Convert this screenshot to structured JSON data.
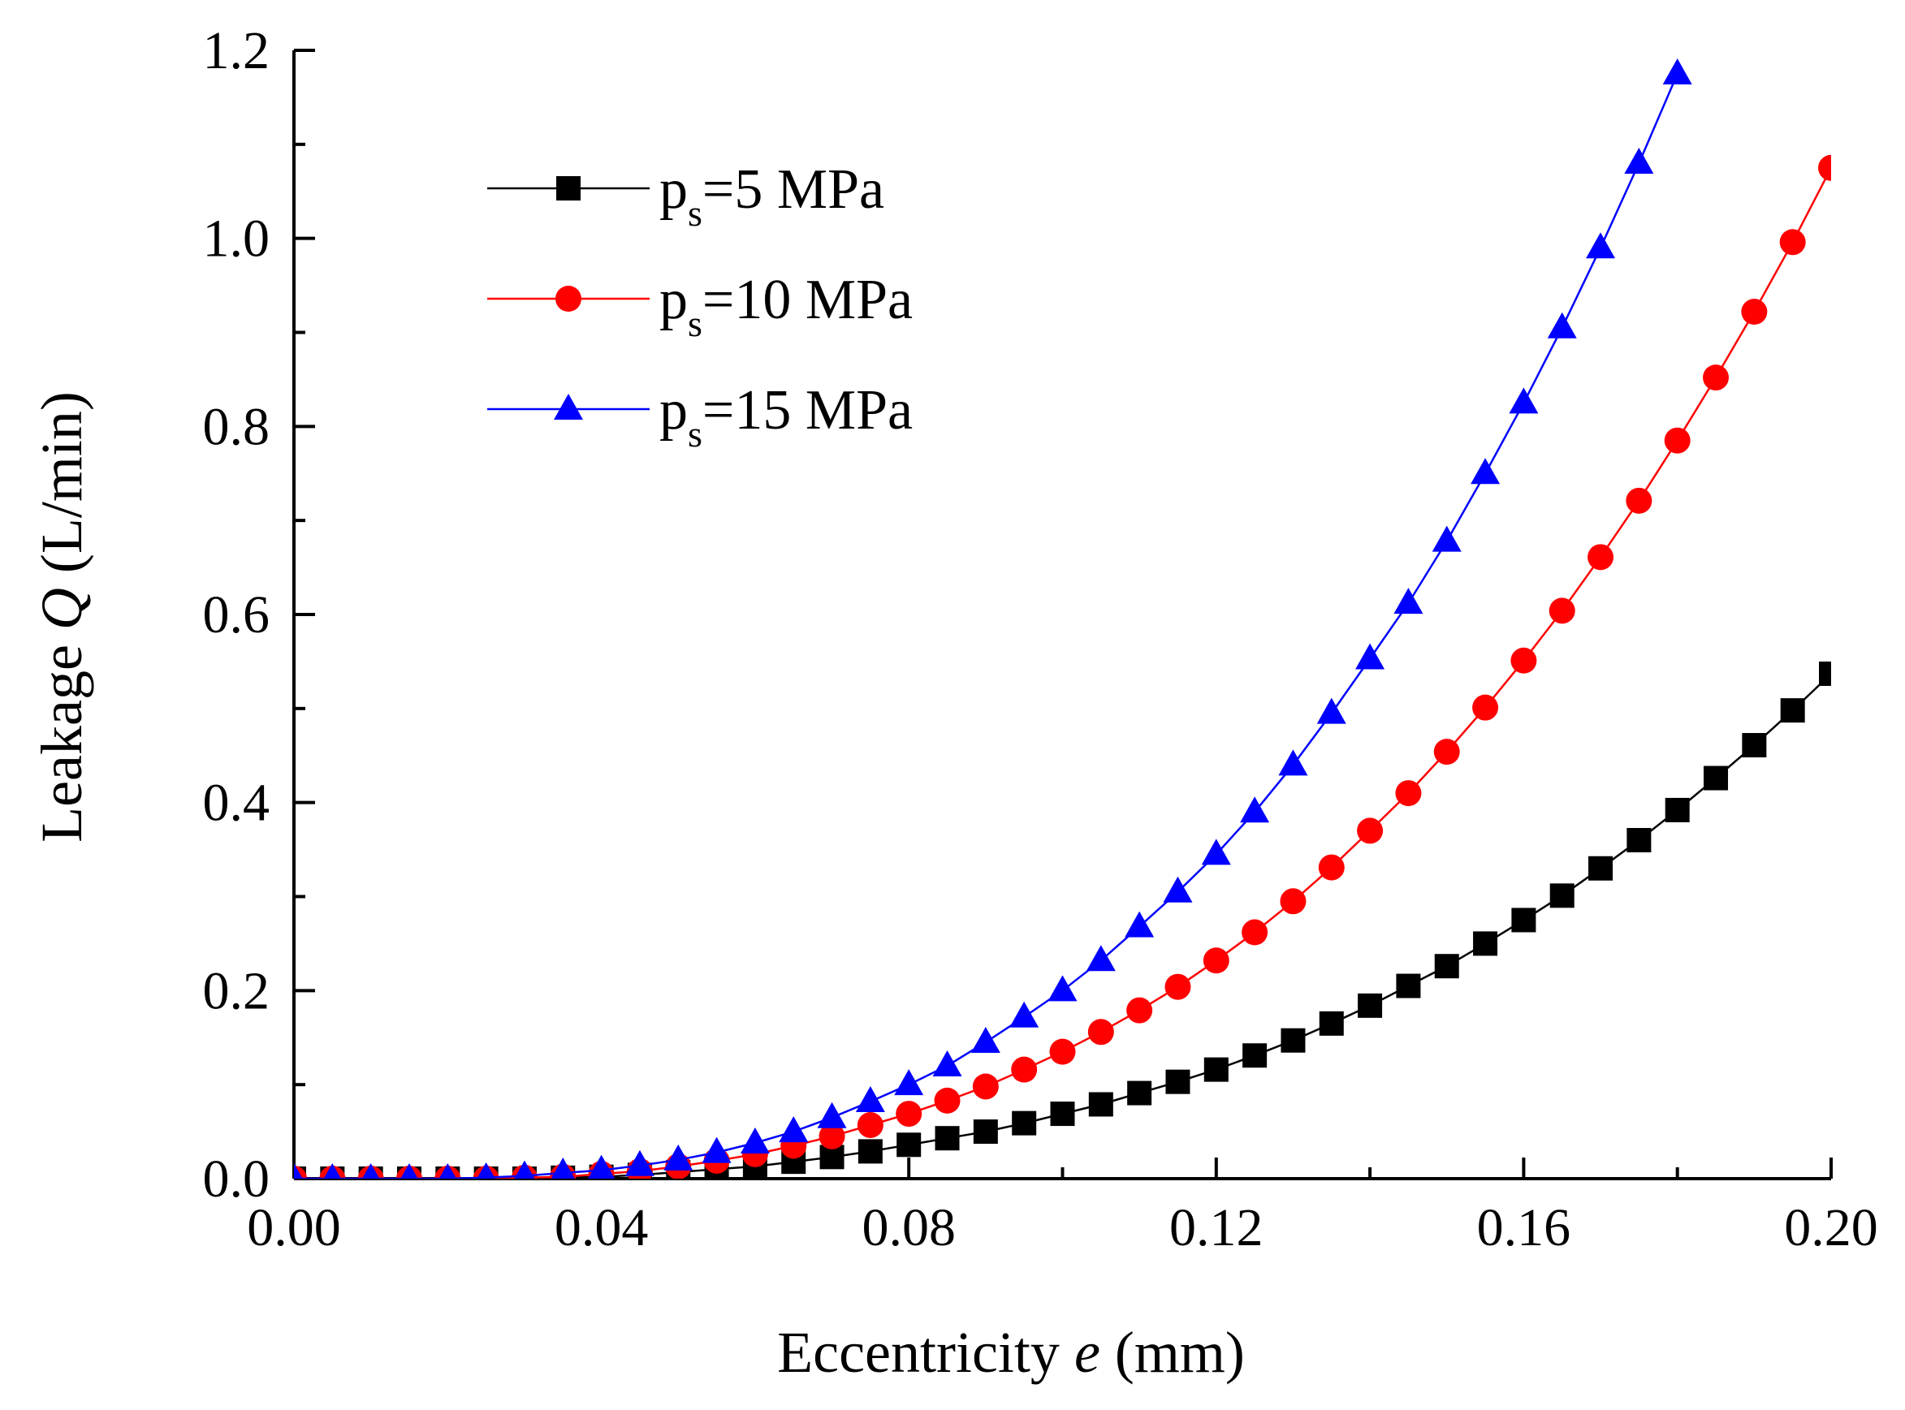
{
  "chart_data": {
    "type": "line",
    "title": "",
    "xlabel": {
      "prefix": "Eccentricity ",
      "symbol": "e",
      "suffix": " (mm)"
    },
    "ylabel": {
      "prefix": "Leakage ",
      "symbol": "Q",
      "suffix": " (L/min)"
    },
    "xlim": [
      0,
      0.2
    ],
    "ylim": [
      0,
      1.2
    ],
    "xticks": [
      "0.00",
      "0.04",
      "0.08",
      "0.12",
      "0.16",
      "0.20"
    ],
    "xtick_values": [
      0,
      0.04,
      0.08,
      0.12,
      0.16,
      0.2
    ],
    "yticks": [
      "0.0",
      "0.2",
      "0.4",
      "0.6",
      "0.8",
      "1.0",
      "1.2"
    ],
    "ytick_values": [
      0,
      0.2,
      0.4,
      0.6,
      0.8,
      1.0,
      1.2
    ],
    "grid": false,
    "legend_position": "top-left",
    "series": [
      {
        "name": "ps=5 MPa",
        "label_main": "p",
        "label_sub": "s",
        "label_rest": "=5 MPa",
        "color": "#000000",
        "marker": "square",
        "x": [
          0,
          0.005,
          0.01,
          0.015,
          0.02,
          0.025,
          0.03,
          0.035,
          0.04,
          0.045,
          0.05,
          0.055,
          0.06,
          0.065,
          0.07,
          0.075,
          0.08,
          0.085,
          0.09,
          0.095,
          0.1,
          0.105,
          0.11,
          0.115,
          0.12,
          0.125,
          0.13,
          0.135,
          0.14,
          0.145,
          0.15,
          0.155,
          0.16,
          0.165,
          0.17,
          0.175,
          0.18,
          0.185,
          0.19,
          0.195,
          0.2
        ],
        "values": [
          0,
          0,
          0,
          0,
          0,
          0,
          0,
          0.001,
          0.002,
          0.004,
          0.007,
          0.01,
          0.013,
          0.018,
          0.023,
          0.029,
          0.036,
          0.043,
          0.05,
          0.059,
          0.069,
          0.079,
          0.091,
          0.103,
          0.116,
          0.131,
          0.147,
          0.165,
          0.184,
          0.205,
          0.226,
          0.25,
          0.275,
          0.301,
          0.33,
          0.36,
          0.392,
          0.426,
          0.461,
          0.498,
          0.537
        ]
      },
      {
        "name": "ps=10 MPa",
        "label_main": "p",
        "label_sub": "s",
        "label_rest": "=10 MPa",
        "color": "#ff0000",
        "marker": "circle",
        "x": [
          0,
          0.005,
          0.01,
          0.015,
          0.02,
          0.025,
          0.03,
          0.035,
          0.04,
          0.045,
          0.05,
          0.055,
          0.06,
          0.065,
          0.07,
          0.075,
          0.08,
          0.085,
          0.09,
          0.095,
          0.1,
          0.105,
          0.11,
          0.115,
          0.12,
          0.125,
          0.13,
          0.135,
          0.14,
          0.145,
          0.15,
          0.155,
          0.16,
          0.165,
          0.17,
          0.175,
          0.18,
          0.185,
          0.19,
          0.195,
          0.2
        ],
        "values": [
          0,
          0,
          0,
          0,
          0,
          0,
          0.001,
          0.002,
          0.005,
          0.008,
          0.013,
          0.019,
          0.026,
          0.035,
          0.045,
          0.057,
          0.069,
          0.083,
          0.098,
          0.116,
          0.135,
          0.156,
          0.179,
          0.204,
          0.232,
          0.262,
          0.295,
          0.331,
          0.37,
          0.41,
          0.454,
          0.501,
          0.551,
          0.604,
          0.661,
          0.721,
          0.785,
          0.852,
          0.922,
          0.996,
          1.075
        ]
      },
      {
        "name": "ps=15 MPa",
        "label_main": "p",
        "label_sub": "s",
        "label_rest": "=15 MPa",
        "color": "#0000ff",
        "marker": "triangle",
        "x": [
          0,
          0.005,
          0.01,
          0.015,
          0.02,
          0.025,
          0.03,
          0.035,
          0.04,
          0.045,
          0.05,
          0.055,
          0.06,
          0.065,
          0.07,
          0.075,
          0.08,
          0.085,
          0.09,
          0.095,
          0.1,
          0.105,
          0.11,
          0.115,
          0.12,
          0.125,
          0.13,
          0.135,
          0.14,
          0.145,
          0.15,
          0.155,
          0.16,
          0.165,
          0.17,
          0.175,
          0.18
        ],
        "values": [
          0,
          0,
          0,
          0,
          0,
          0.001,
          0.003,
          0.006,
          0.009,
          0.014,
          0.02,
          0.028,
          0.038,
          0.05,
          0.065,
          0.082,
          0.1,
          0.12,
          0.145,
          0.172,
          0.2,
          0.232,
          0.268,
          0.305,
          0.345,
          0.39,
          0.44,
          0.495,
          0.553,
          0.612,
          0.678,
          0.75,
          0.825,
          0.905,
          0.99,
          1.08,
          1.175
        ]
      }
    ]
  }
}
